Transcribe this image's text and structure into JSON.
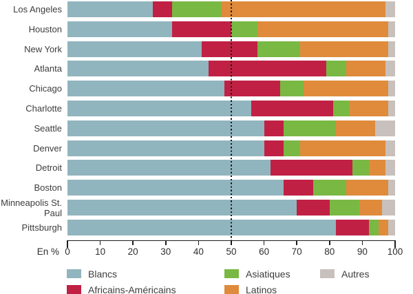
{
  "chart_data": {
    "type": "bar",
    "stacked": true,
    "orientation": "horizontal",
    "title": "",
    "unit_label": "En %",
    "xlim": [
      0,
      100
    ],
    "x_ticks": [
      0,
      10,
      20,
      30,
      40,
      50,
      60,
      70,
      80,
      90,
      100
    ],
    "grid": false,
    "reference_line": {
      "value": 50,
      "style": "dotted",
      "color": "#161616"
    },
    "legend_position": "bottom",
    "categories": [
      "Los Angeles",
      "Houston",
      "New York",
      "Atlanta",
      "Chicago",
      "Charlotte",
      "Seattle",
      "Denver",
      "Detroit",
      "Boston",
      "Minneapolis St. Paul",
      "Pittsburgh"
    ],
    "series": [
      {
        "name": "Blancs",
        "color": "#91B5BE",
        "values": [
          26,
          32,
          41,
          43,
          48,
          56,
          60,
          60,
          62,
          66,
          70,
          82
        ]
      },
      {
        "name": "Africains-Américains",
        "color": "#C12045",
        "values": [
          6,
          18,
          17,
          36,
          17,
          25,
          6,
          6,
          25,
          9,
          10,
          10
        ]
      },
      {
        "name": "Asiatiques",
        "color": "#79B843",
        "values": [
          15,
          8,
          13,
          6,
          7,
          5,
          16,
          5,
          5,
          10,
          9,
          3
        ]
      },
      {
        "name": "Latinos",
        "color": "#DF8B3B",
        "values": [
          50,
          40,
          27,
          12,
          26,
          12,
          12,
          26,
          5,
          13,
          7,
          3
        ]
      },
      {
        "name": "Autres",
        "color": "#C8C0BC",
        "values": [
          3,
          2,
          2,
          3,
          2,
          2,
          6,
          3,
          3,
          2,
          4,
          2
        ]
      }
    ]
  },
  "colors": {
    "background": "#ffffff",
    "axis": "#1c1c1c",
    "text": "#3c3c3c"
  }
}
